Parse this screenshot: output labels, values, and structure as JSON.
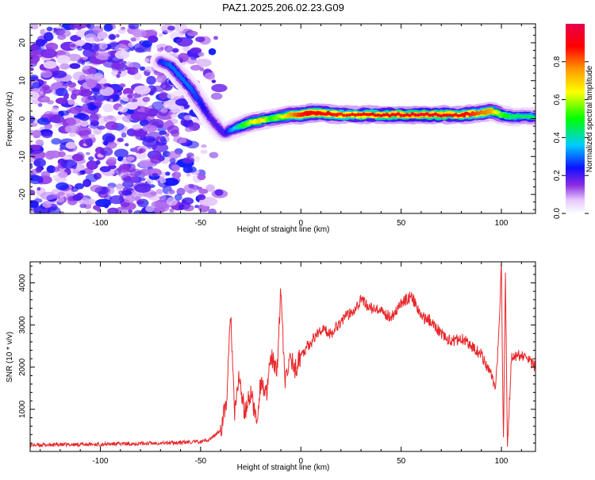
{
  "title": "PAZ1.2025.206.02.23.G09",
  "chart_data": [
    {
      "type": "heatmap",
      "xlabel": "Height of straight line (km)",
      "ylabel": "Frequency (Hz)",
      "xlim": [
        -135,
        117
      ],
      "ylim": [
        -25,
        25
      ],
      "xticks": [
        -100,
        -50,
        0,
        50,
        100
      ],
      "yticks": [
        -20,
        -10,
        0,
        10,
        20
      ],
      "colorbar": {
        "label": "Normalized spectral amplitude",
        "range": [
          0,
          1
        ],
        "ticks": [
          0.0,
          0.2,
          0.4,
          0.6,
          0.8
        ],
        "tick_labels": [
          "0.0",
          "0.2",
          "0.4",
          "0.6",
          "0.8"
        ],
        "colormap": "rainbow: white, magenta, purple, blue, cyan, green, yellow, orange, red, crimson"
      },
      "ridge": {
        "x": [
          -70,
          -65,
          -60,
          -55,
          -50,
          -45,
          -40,
          -38,
          -35,
          -30,
          -25,
          -20,
          -15,
          -10,
          -5,
          0,
          5,
          10,
          20,
          40,
          60,
          80,
          90,
          95,
          100,
          105,
          117
        ],
        "y": [
          15,
          14,
          11,
          8,
          4,
          0,
          -3,
          -4,
          -3,
          -2,
          -1,
          -0.5,
          0,
          0.5,
          1,
          1,
          1.5,
          1.5,
          1,
          1,
          1,
          1,
          1.5,
          2,
          1,
          0.5,
          0.5
        ],
        "amplitude": [
          0.25,
          0.3,
          0.3,
          0.3,
          0.25,
          0.2,
          0.2,
          0.2,
          0.3,
          0.45,
          0.6,
          0.7,
          0.5,
          0.6,
          0.75,
          0.85,
          0.9,
          0.9,
          0.85,
          0.9,
          0.95,
          0.9,
          0.8,
          0.75,
          0.55,
          0.45,
          0.45
        ]
      },
      "noise": {
        "x_range": [
          -135,
          -40
        ],
        "y_range": [
          -25,
          25
        ],
        "amplitude_range": [
          0.05,
          0.25
        ]
      }
    },
    {
      "type": "line",
      "xlabel": "Height of straight line (km)",
      "ylabel": "SNR (10 * v/v)",
      "xlim": [
        -135,
        117
      ],
      "ylim": [
        0,
        4500
      ],
      "xticks": [
        -100,
        -50,
        0,
        50,
        100
      ],
      "yticks": [
        1000,
        2000,
        3000,
        4000
      ],
      "color": "#e8282b",
      "series": [
        {
          "x": [
            -135,
            -120,
            -100,
            -80,
            -60,
            -50,
            -45,
            -40,
            -37,
            -35,
            -33,
            -31,
            -28,
            -25,
            -22,
            -20,
            -17,
            -15,
            -12,
            -10,
            -8,
            -5,
            -3,
            0,
            5,
            10,
            15,
            20,
            25,
            30,
            35,
            40,
            45,
            50,
            55,
            60,
            65,
            70,
            75,
            80,
            85,
            90,
            95,
            97,
            99,
            100,
            101,
            102,
            103,
            105,
            110,
            117
          ],
          "y": [
            150,
            160,
            170,
            190,
            210,
            230,
            300,
            500,
            1200,
            3300,
            800,
            1800,
            900,
            1400,
            700,
            1700,
            1300,
            2300,
            1800,
            3900,
            1600,
            2300,
            1900,
            2300,
            2600,
            2900,
            2800,
            3100,
            3300,
            3600,
            3400,
            3300,
            3200,
            3500,
            3700,
            3200,
            3100,
            2800,
            2600,
            2700,
            2500,
            2300,
            1800,
            1400,
            3000,
            4450,
            200,
            4300,
            100,
            2200,
            2300,
            2000
          ]
        }
      ]
    }
  ]
}
